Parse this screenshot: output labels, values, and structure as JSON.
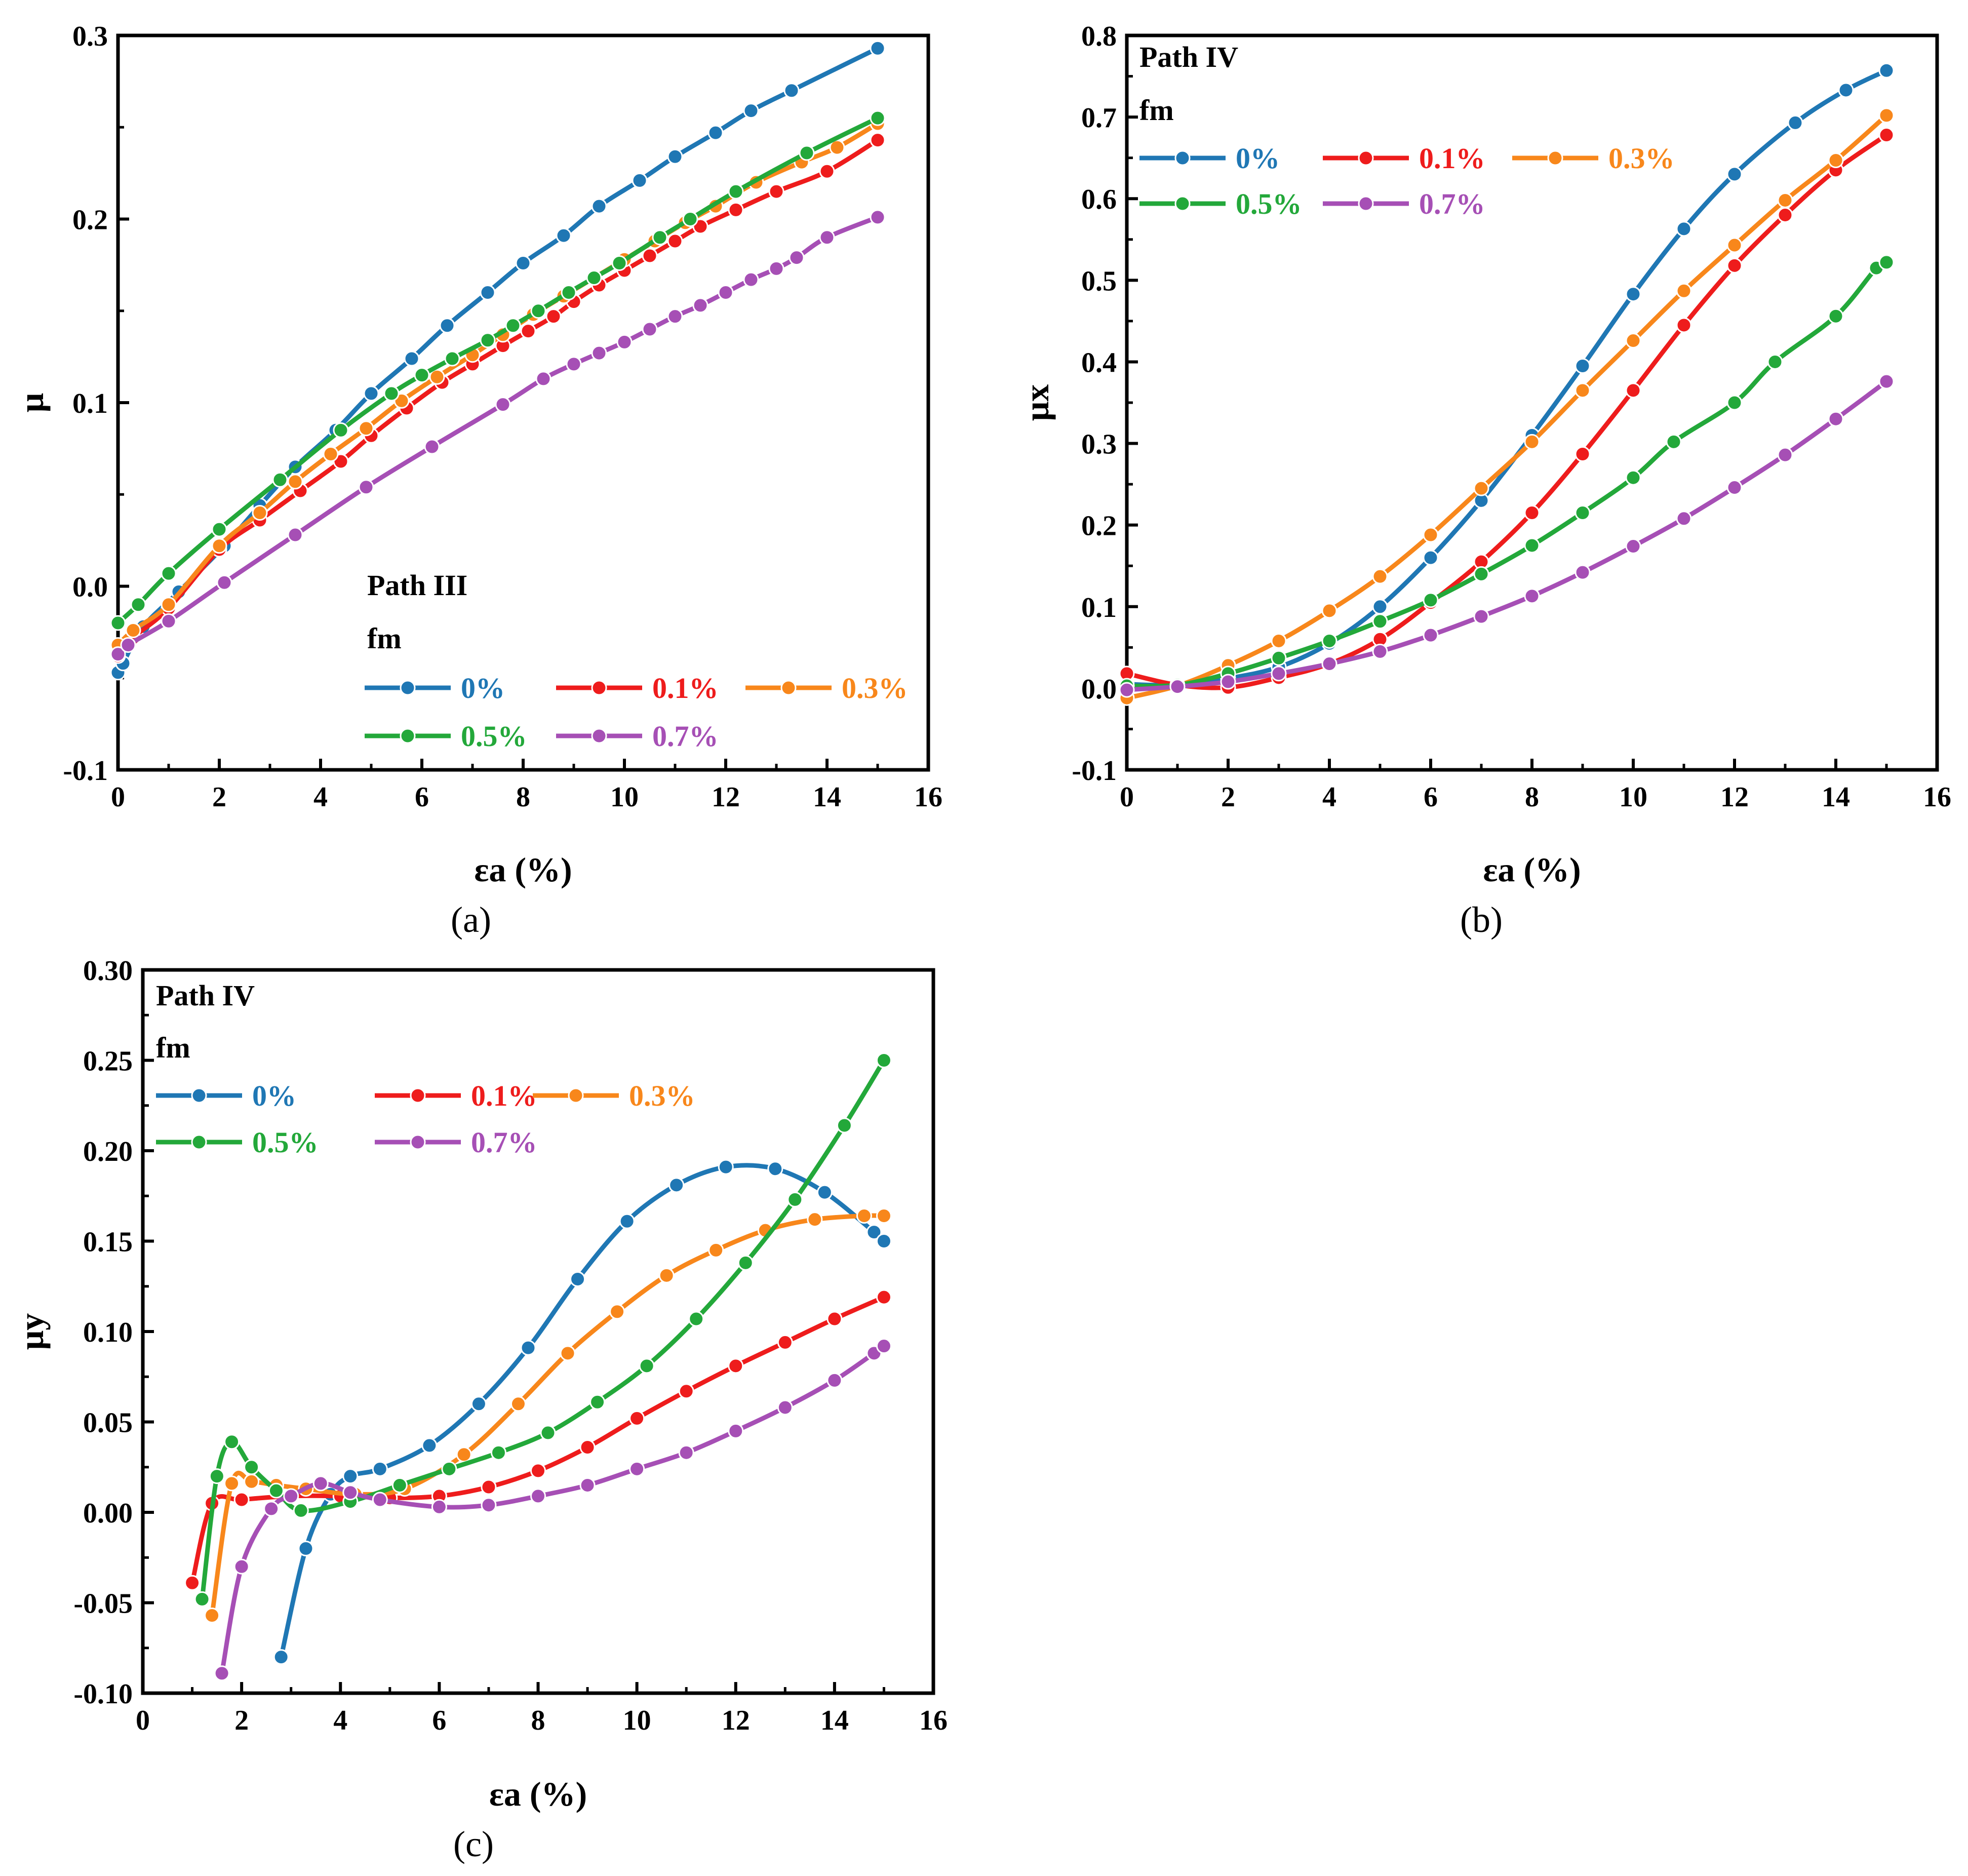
{
  "colors": {
    "0%": "#1f77b4",
    "0.1%": "#ee1c1c",
    "0.3%": "#f8871b",
    "0.5%": "#23a83a",
    "0.7%": "#a64fb5"
  },
  "chart_data": [
    {
      "type": "line",
      "caption": "(a)",
      "xlabel": "εa (%)",
      "ylabel": "μ",
      "xlim": [
        0,
        16
      ],
      "ylim": [
        -0.1,
        0.3
      ],
      "xticks": [
        "0",
        "2",
        "4",
        "6",
        "8",
        "10",
        "12",
        "14",
        "16"
      ],
      "yticks": [
        "-0.1",
        "0.0",
        "0.1",
        "0.2",
        "0.3"
      ],
      "legend_title": "Path III",
      "legend_subtitle": "fm",
      "legend_placement": "bottom-right",
      "series": [
        {
          "name": "0%",
          "x": [
            0,
            0.1,
            0.5,
            1.2,
            2.1,
            2.8,
            3.5,
            4.3,
            5,
            5.8,
            6.5,
            7.3,
            8,
            8.8,
            9.5,
            10.3,
            11,
            11.8,
            12.5,
            13.3,
            15
          ],
          "y": [
            -0.047,
            -0.042,
            -0.022,
            -0.003,
            0.022,
            0.044,
            0.065,
            0.085,
            0.105,
            0.124,
            0.142,
            0.16,
            0.176,
            0.191,
            0.207,
            0.221,
            0.234,
            0.247,
            0.259,
            0.27,
            0.293
          ]
        },
        {
          "name": "0.1%",
          "x": [
            0,
            0.3,
            1,
            2,
            2.8,
            3.6,
            4.4,
            5,
            5.7,
            6.4,
            7,
            7.6,
            8.1,
            8.6,
            9,
            9.5,
            10,
            10.5,
            11,
            11.5,
            12.2,
            13,
            14,
            15
          ],
          "y": [
            -0.038,
            -0.028,
            -0.012,
            0.02,
            0.036,
            0.052,
            0.068,
            0.082,
            0.097,
            0.111,
            0.121,
            0.131,
            0.139,
            0.147,
            0.155,
            0.164,
            0.172,
            0.18,
            0.188,
            0.196,
            0.205,
            0.215,
            0.226,
            0.243
          ]
        },
        {
          "name": "0.3%",
          "x": [
            0,
            0.3,
            1,
            2,
            2.8,
            3.5,
            4.2,
            4.9,
            5.6,
            6.3,
            7,
            7.6,
            8.2,
            8.8,
            9.4,
            10,
            10.6,
            11.2,
            11.8,
            12.6,
            13.5,
            14.2,
            15
          ],
          "y": [
            -0.032,
            -0.024,
            -0.01,
            0.022,
            0.04,
            0.057,
            0.072,
            0.086,
            0.101,
            0.114,
            0.126,
            0.137,
            0.148,
            0.158,
            0.168,
            0.178,
            0.188,
            0.198,
            0.207,
            0.22,
            0.231,
            0.239,
            0.252
          ]
        },
        {
          "name": "0.5%",
          "x": [
            0,
            0.4,
            1,
            2,
            3.2,
            4.4,
            5.4,
            6,
            6.6,
            7.3,
            7.8,
            8.3,
            8.9,
            9.4,
            9.9,
            10.7,
            11.3,
            12.2,
            13.6,
            15
          ],
          "y": [
            -0.02,
            -0.01,
            0.007,
            0.031,
            0.058,
            0.085,
            0.105,
            0.115,
            0.124,
            0.134,
            0.142,
            0.15,
            0.16,
            0.168,
            0.176,
            0.19,
            0.2,
            0.215,
            0.236,
            0.255
          ]
        },
        {
          "name": "0.7%",
          "x": [
            0,
            0.2,
            1,
            2.1,
            3.5,
            4.9,
            6.2,
            7.6,
            8.4,
            9,
            9.5,
            10,
            10.5,
            11,
            11.5,
            12,
            12.5,
            13,
            13.4,
            14,
            15
          ],
          "y": [
            -0.037,
            -0.032,
            -0.019,
            0.002,
            0.028,
            0.054,
            0.076,
            0.099,
            0.113,
            0.121,
            0.127,
            0.133,
            0.14,
            0.147,
            0.153,
            0.16,
            0.167,
            0.173,
            0.179,
            0.19,
            0.201
          ]
        }
      ]
    },
    {
      "type": "line",
      "caption": "(b)",
      "xlabel": "εa (%)",
      "ylabel": "μx",
      "xlim": [
        0,
        16
      ],
      "ylim": [
        -0.1,
        0.8
      ],
      "xticks": [
        "0",
        "2",
        "4",
        "6",
        "8",
        "10",
        "12",
        "14",
        "16"
      ],
      "yticks": [
        "-0.1",
        "0.0",
        "0.1",
        "0.2",
        "0.3",
        "0.4",
        "0.5",
        "0.6",
        "0.7",
        "0.8"
      ],
      "legend_title": "Path IV",
      "legend_subtitle": "fm",
      "legend_placement": "top-left",
      "series": [
        {
          "name": "0%",
          "x": [
            0,
            1,
            2,
            3,
            4,
            5,
            6,
            7,
            8,
            9,
            10,
            11,
            12,
            13.2,
            14.2,
            15
          ],
          "y": [
            0.005,
            0.004,
            0.012,
            0.026,
            0.055,
            0.1,
            0.16,
            0.23,
            0.31,
            0.395,
            0.483,
            0.563,
            0.63,
            0.693,
            0.733,
            0.757
          ]
        },
        {
          "name": "0.1%",
          "x": [
            0,
            1,
            2,
            3,
            4,
            5,
            6,
            7,
            8,
            9,
            10,
            11,
            12,
            13,
            14,
            15
          ],
          "y": [
            0.018,
            0.004,
            0.001,
            0.013,
            0.03,
            0.06,
            0.105,
            0.155,
            0.215,
            0.287,
            0.365,
            0.445,
            0.518,
            0.58,
            0.635,
            0.678
          ]
        },
        {
          "name": "0.3%",
          "x": [
            0,
            1,
            2,
            3,
            4,
            5,
            6,
            7,
            8,
            9,
            10,
            11,
            12,
            13,
            14,
            15
          ],
          "y": [
            -0.012,
            0.003,
            0.028,
            0.058,
            0.095,
            0.137,
            0.188,
            0.245,
            0.302,
            0.365,
            0.426,
            0.487,
            0.543,
            0.598,
            0.647,
            0.702
          ]
        },
        {
          "name": "0.5%",
          "x": [
            0,
            1,
            2,
            3,
            4,
            5,
            6,
            7,
            8,
            9,
            10,
            10.8,
            12,
            12.8,
            14,
            14.8,
            15
          ],
          "y": [
            0.003,
            0.004,
            0.018,
            0.037,
            0.058,
            0.082,
            0.108,
            0.14,
            0.175,
            0.215,
            0.258,
            0.302,
            0.35,
            0.4,
            0.456,
            0.515,
            0.522
          ]
        },
        {
          "name": "0.7%",
          "x": [
            0,
            1,
            2,
            3,
            4,
            5,
            6,
            7,
            8,
            9,
            10,
            11,
            12,
            13,
            14,
            15
          ],
          "y": [
            -0.002,
            0.002,
            0.008,
            0.018,
            0.03,
            0.045,
            0.065,
            0.088,
            0.113,
            0.142,
            0.174,
            0.208,
            0.246,
            0.286,
            0.33,
            0.376
          ]
        }
      ]
    },
    {
      "type": "line",
      "caption": "(c)",
      "xlabel": "εa (%)",
      "ylabel": "μy",
      "xlim": [
        0,
        16
      ],
      "ylim": [
        -0.1,
        0.3
      ],
      "xticks": [
        "0",
        "2",
        "4",
        "6",
        "8",
        "10",
        "12",
        "14",
        "16"
      ],
      "yticks": [
        "-0.10",
        "-0.05",
        "0.00",
        "0.05",
        "0.10",
        "0.15",
        "0.20",
        "0.25",
        "0.30"
      ],
      "legend_title": "Path IV",
      "legend_subtitle": "fm",
      "legend_placement": "top-left",
      "series": [
        {
          "name": "0%",
          "x": [
            2.8,
            3.3,
            3.8,
            4.2,
            4.8,
            5.8,
            6.8,
            7.8,
            8.8,
            9.8,
            10.8,
            11.8,
            12.8,
            13.8,
            14.8,
            15
          ],
          "y": [
            -0.08,
            -0.02,
            0.01,
            0.02,
            0.024,
            0.037,
            0.06,
            0.091,
            0.129,
            0.161,
            0.181,
            0.191,
            0.19,
            0.177,
            0.155,
            0.15
          ]
        },
        {
          "name": "0.1%",
          "x": [
            1,
            1.4,
            2,
            3,
            4,
            5,
            6,
            7,
            8,
            9,
            10,
            11,
            12,
            13,
            14,
            15
          ],
          "y": [
            -0.039,
            0.005,
            0.007,
            0.009,
            0.009,
            0.008,
            0.009,
            0.014,
            0.023,
            0.036,
            0.052,
            0.067,
            0.081,
            0.094,
            0.107,
            0.119
          ]
        },
        {
          "name": "0.3%",
          "x": [
            1.4,
            1.8,
            2.2,
            2.7,
            3.3,
            4.3,
            5.3,
            6.5,
            7.6,
            8.6,
            9.6,
            10.6,
            11.6,
            12.6,
            13.6,
            14.6,
            15
          ],
          "y": [
            -0.057,
            0.016,
            0.017,
            0.015,
            0.013,
            0.01,
            0.013,
            0.032,
            0.06,
            0.088,
            0.111,
            0.131,
            0.145,
            0.156,
            0.162,
            0.164,
            0.164
          ]
        },
        {
          "name": "0.5%",
          "x": [
            1.2,
            1.5,
            1.8,
            2.2,
            2.7,
            3.2,
            4.2,
            5.2,
            6.2,
            7.2,
            8.2,
            9.2,
            10.2,
            11.2,
            12.2,
            13.2,
            14.2,
            15
          ],
          "y": [
            -0.048,
            0.02,
            0.039,
            0.025,
            0.012,
            0.001,
            0.006,
            0.015,
            0.024,
            0.033,
            0.044,
            0.061,
            0.081,
            0.107,
            0.138,
            0.173,
            0.214,
            0.25
          ]
        },
        {
          "name": "0.7%",
          "x": [
            1.6,
            2,
            2.6,
            3,
            3.6,
            4.2,
            4.8,
            6,
            7,
            8,
            9,
            10,
            11,
            12,
            13,
            14,
            14.8,
            15
          ],
          "y": [
            -0.089,
            -0.03,
            0.002,
            0.009,
            0.016,
            0.011,
            0.007,
            0.003,
            0.004,
            0.009,
            0.015,
            0.024,
            0.033,
            0.045,
            0.058,
            0.073,
            0.088,
            0.092
          ]
        }
      ]
    }
  ]
}
